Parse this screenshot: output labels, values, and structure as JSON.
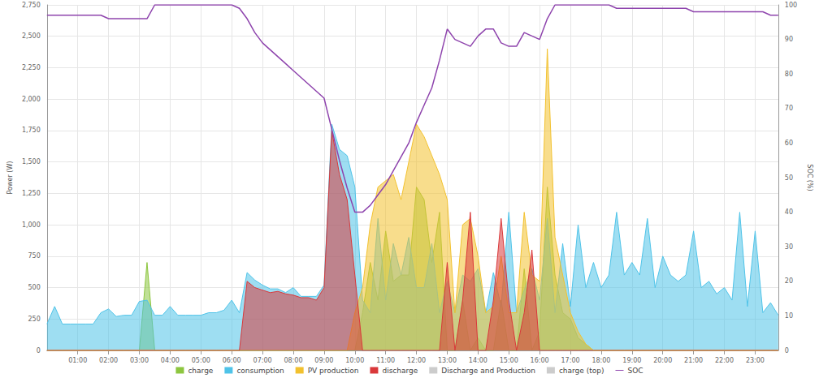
{
  "chart_data": {
    "type": "line",
    "y_label": "Power (W)",
    "y2_label": "SOC (%)",
    "x": [
      null,
      null,
      null,
      null,
      "01:00",
      null,
      null,
      null,
      "02:00",
      null,
      null,
      null,
      "03:00",
      null,
      null,
      null,
      "04:00",
      null,
      null,
      null,
      "05:00",
      null,
      null,
      null,
      "06:00",
      null,
      null,
      null,
      "07:00",
      null,
      null,
      null,
      "08:00",
      null,
      null,
      null,
      "09:00",
      null,
      null,
      null,
      "10:00",
      null,
      null,
      null,
      "11:00",
      null,
      null,
      null,
      "12:00",
      null,
      null,
      null,
      "13:00",
      null,
      null,
      null,
      "14:00",
      null,
      null,
      null,
      "15:00",
      null,
      null,
      null,
      "16:00",
      null,
      null,
      null,
      "17:00",
      null,
      null,
      null,
      "18:00",
      null,
      null,
      null,
      "19:00",
      null,
      null,
      null,
      "20:00",
      null,
      null,
      null,
      "21:00",
      null,
      null,
      null,
      "22:00",
      null,
      null,
      null,
      "23:00",
      null,
      null,
      null
    ],
    "ylim": [
      0,
      2750
    ],
    "yticks": [
      0,
      250,
      500,
      750,
      1000,
      1250,
      1500,
      1750,
      2000,
      2250,
      2500,
      2750
    ],
    "y2lim": [
      0,
      100
    ],
    "y2ticks": [
      0,
      10,
      20,
      30,
      40,
      50,
      60,
      70,
      80,
      90,
      100
    ],
    "grid": true,
    "legend": "bottom",
    "series": [
      {
        "name": "charge",
        "type": "area",
        "color": "#8dc63f",
        "values": [
          0,
          0,
          0,
          0,
          0,
          0,
          0,
          0,
          0,
          0,
          0,
          0,
          0,
          700,
          0,
          0,
          0,
          0,
          0,
          0,
          0,
          0,
          0,
          0,
          0,
          0,
          0,
          0,
          0,
          0,
          0,
          0,
          0,
          0,
          0,
          0,
          0,
          0,
          0,
          0,
          0,
          300,
          700,
          400,
          950,
          550,
          600,
          600,
          1300,
          1200,
          700,
          1100,
          0,
          0,
          400,
          0,
          100,
          0,
          0,
          400,
          0,
          0,
          650,
          0,
          150,
          1300,
          600,
          300,
          250,
          100,
          50,
          0,
          0,
          0,
          0,
          0,
          0,
          0,
          0,
          0,
          0,
          0,
          0,
          0,
          0,
          0,
          0,
          0,
          0,
          0,
          0,
          0,
          0,
          0,
          0,
          0
        ]
      },
      {
        "name": "consumption",
        "type": "area",
        "color": "#4fc3e8",
        "values": [
          210,
          350,
          210,
          210,
          210,
          210,
          210,
          300,
          330,
          270,
          280,
          280,
          390,
          400,
          280,
          280,
          350,
          280,
          280,
          280,
          280,
          300,
          300,
          320,
          400,
          300,
          620,
          560,
          520,
          490,
          490,
          460,
          500,
          430,
          430,
          430,
          520,
          1800,
          1600,
          1550,
          1300,
          400,
          300,
          1050,
          400,
          850,
          600,
          900,
          500,
          500,
          850,
          300,
          550,
          300,
          600,
          550,
          650,
          300,
          620,
          350,
          1100,
          300,
          480,
          650,
          400,
          1050,
          300,
          850,
          350,
          1000,
          500,
          700,
          500,
          600,
          1100,
          600,
          700,
          600,
          1050,
          500,
          750,
          600,
          550,
          600,
          950,
          500,
          550,
          450,
          500,
          400,
          1100,
          350,
          950,
          300,
          380,
          280
        ]
      },
      {
        "name": "PV production",
        "type": "area",
        "color": "#f2c12e",
        "values": [
          0,
          0,
          0,
          0,
          0,
          0,
          0,
          0,
          0,
          0,
          0,
          0,
          0,
          0,
          0,
          0,
          0,
          0,
          0,
          0,
          0,
          0,
          0,
          0,
          0,
          0,
          0,
          0,
          0,
          0,
          0,
          0,
          0,
          0,
          0,
          0,
          0,
          0,
          0,
          0,
          300,
          500,
          1000,
          1300,
          1350,
          1400,
          1200,
          1500,
          1800,
          1700,
          1550,
          1400,
          1200,
          300,
          1000,
          1050,
          750,
          300,
          350,
          750,
          300,
          300,
          1100,
          600,
          550,
          2400,
          900,
          600,
          300,
          150,
          50,
          0,
          0,
          0,
          0,
          0,
          0,
          0,
          0,
          0,
          0,
          0,
          0,
          0,
          0,
          0,
          0,
          0,
          0,
          0,
          0,
          0,
          0,
          0,
          0,
          0
        ]
      },
      {
        "name": "discharge",
        "type": "area",
        "color": "#d9383a",
        "values": [
          0,
          0,
          0,
          0,
          0,
          0,
          0,
          0,
          0,
          0,
          0,
          0,
          0,
          0,
          0,
          0,
          0,
          0,
          0,
          0,
          0,
          0,
          0,
          0,
          0,
          0,
          550,
          500,
          480,
          460,
          470,
          450,
          440,
          420,
          420,
          400,
          500,
          1750,
          1400,
          1200,
          600,
          0,
          0,
          0,
          0,
          0,
          0,
          0,
          0,
          0,
          0,
          0,
          700,
          0,
          400,
          1100,
          0,
          0,
          400,
          1050,
          400,
          0,
          300,
          800,
          0,
          0,
          0,
          0,
          0,
          0,
          0,
          0,
          0,
          0,
          0,
          0,
          0,
          0,
          0,
          0,
          0,
          0,
          0,
          0,
          0,
          0,
          0,
          0,
          0,
          0,
          0,
          0,
          0,
          0,
          0,
          0
        ]
      },
      {
        "name": "Discharge and Production",
        "type": "area",
        "color": "#cccccc",
        "values": [
          null,
          null,
          null,
          null,
          null,
          null,
          null,
          null,
          null,
          null,
          null,
          null,
          null,
          null,
          null,
          null,
          null,
          null,
          null,
          null,
          null,
          null,
          null,
          null,
          null,
          null,
          null,
          null,
          null,
          null,
          null,
          null,
          null,
          null,
          null,
          null,
          null,
          null,
          null,
          null,
          null,
          null,
          null,
          null,
          null,
          null,
          null,
          null,
          null,
          null,
          null,
          null,
          null,
          null,
          null,
          null,
          null,
          null,
          null,
          null,
          null,
          null,
          null,
          null,
          null,
          null,
          null,
          null,
          null,
          null,
          null,
          null,
          null,
          null,
          null,
          null,
          null,
          null,
          null,
          null,
          null,
          null,
          null,
          null,
          null,
          null,
          null,
          null,
          null,
          null,
          null,
          null,
          null,
          null,
          null,
          null
        ]
      },
      {
        "name": "charge (top)",
        "type": "area",
        "color": "#cccccc",
        "values": [
          null,
          null,
          null,
          null,
          null,
          null,
          null,
          null,
          null,
          null,
          null,
          null,
          null,
          null,
          null,
          null,
          null,
          null,
          null,
          null,
          null,
          null,
          null,
          null,
          null,
          null,
          null,
          null,
          null,
          null,
          null,
          null,
          null,
          null,
          null,
          null,
          null,
          null,
          null,
          null,
          null,
          null,
          null,
          null,
          null,
          null,
          null,
          null,
          null,
          null,
          null,
          null,
          null,
          null,
          null,
          null,
          null,
          null,
          null,
          null,
          null,
          null,
          null,
          null,
          null,
          null,
          null,
          null,
          null,
          null,
          null,
          null,
          null,
          null,
          null,
          null,
          null,
          null,
          null,
          null,
          null,
          null,
          null,
          null,
          null,
          null,
          null,
          null,
          null,
          null,
          null,
          null,
          null,
          null,
          null,
          null
        ]
      },
      {
        "name": "SOC",
        "type": "line",
        "axis": "y2",
        "color": "#8e44ad",
        "values": [
          97,
          97,
          97,
          97,
          97,
          97,
          97,
          97,
          96,
          96,
          96,
          96,
          96,
          96,
          100,
          100,
          100,
          100,
          100,
          100,
          100,
          100,
          100,
          100,
          100,
          99,
          96,
          92,
          89,
          87,
          85,
          83,
          81,
          79,
          77,
          75,
          73,
          64,
          55,
          47,
          40,
          40,
          42,
          45,
          48,
          52,
          56,
          60,
          66,
          71,
          76,
          84,
          93,
          90,
          89,
          88,
          91,
          93,
          93,
          89,
          88,
          88,
          92,
          91,
          90,
          96,
          100,
          100,
          100,
          100,
          100,
          100,
          100,
          100,
          99,
          99,
          99,
          99,
          99,
          99,
          99,
          99,
          99,
          99,
          98,
          98,
          98,
          98,
          98,
          98,
          98,
          98,
          98,
          98,
          97,
          97
        ]
      }
    ]
  }
}
